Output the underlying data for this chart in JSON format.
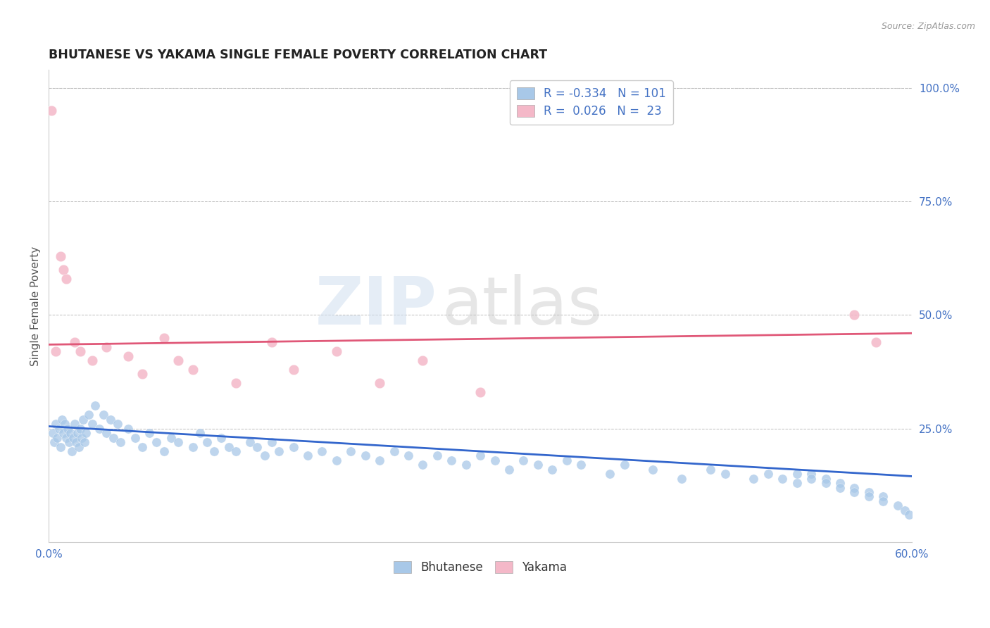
{
  "title": "BHUTANESE VS YAKAMA SINGLE FEMALE POVERTY CORRELATION CHART",
  "source": "Source: ZipAtlas.com",
  "ylabel": "Single Female Poverty",
  "xlim": [
    0.0,
    0.6
  ],
  "ylim": [
    0.0,
    1.04
  ],
  "xticks": [
    0.0,
    0.1,
    0.2,
    0.3,
    0.4,
    0.5,
    0.6
  ],
  "xticklabels": [
    "0.0%",
    "",
    "",
    "",
    "",
    "",
    "60.0%"
  ],
  "yticks_right": [
    0.0,
    0.25,
    0.5,
    0.75,
    1.0
  ],
  "ytickslabels_right": [
    "",
    "25.0%",
    "50.0%",
    "75.0%",
    "100.0%"
  ],
  "blue_R": "-0.334",
  "blue_N": "101",
  "pink_R": "0.026",
  "pink_N": "23",
  "blue_color": "#a8c8e8",
  "pink_color": "#f4b8c8",
  "blue_line_color": "#3366cc",
  "pink_line_color": "#e05878",
  "watermark_text": "ZIP",
  "watermark_text2": "atlas",
  "background_color": "#ffffff",
  "title_color": "#222222",
  "axis_label_color": "#555555",
  "tick_color": "#4472c4",
  "grid_color": "#bbbbbb",
  "blue_scatter_x": [
    0.003,
    0.004,
    0.005,
    0.006,
    0.007,
    0.008,
    0.009,
    0.01,
    0.011,
    0.012,
    0.013,
    0.014,
    0.015,
    0.016,
    0.017,
    0.018,
    0.019,
    0.02,
    0.021,
    0.022,
    0.023,
    0.024,
    0.025,
    0.026,
    0.028,
    0.03,
    0.032,
    0.035,
    0.038,
    0.04,
    0.043,
    0.045,
    0.048,
    0.05,
    0.055,
    0.06,
    0.065,
    0.07,
    0.075,
    0.08,
    0.085,
    0.09,
    0.1,
    0.105,
    0.11,
    0.115,
    0.12,
    0.125,
    0.13,
    0.14,
    0.145,
    0.15,
    0.155,
    0.16,
    0.17,
    0.18,
    0.19,
    0.2,
    0.21,
    0.22,
    0.23,
    0.24,
    0.25,
    0.26,
    0.27,
    0.28,
    0.29,
    0.3,
    0.31,
    0.32,
    0.33,
    0.34,
    0.35,
    0.36,
    0.37,
    0.39,
    0.4,
    0.42,
    0.44,
    0.46,
    0.47,
    0.49,
    0.5,
    0.51,
    0.52,
    0.53,
    0.54,
    0.55,
    0.56,
    0.57,
    0.58,
    0.52,
    0.53,
    0.54,
    0.55,
    0.56,
    0.57,
    0.58,
    0.59,
    0.595,
    0.598
  ],
  "blue_scatter_y": [
    0.24,
    0.22,
    0.26,
    0.23,
    0.25,
    0.21,
    0.27,
    0.24,
    0.26,
    0.23,
    0.25,
    0.22,
    0.24,
    0.2,
    0.23,
    0.26,
    0.22,
    0.24,
    0.21,
    0.25,
    0.23,
    0.27,
    0.22,
    0.24,
    0.28,
    0.26,
    0.3,
    0.25,
    0.28,
    0.24,
    0.27,
    0.23,
    0.26,
    0.22,
    0.25,
    0.23,
    0.21,
    0.24,
    0.22,
    0.2,
    0.23,
    0.22,
    0.21,
    0.24,
    0.22,
    0.2,
    0.23,
    0.21,
    0.2,
    0.22,
    0.21,
    0.19,
    0.22,
    0.2,
    0.21,
    0.19,
    0.2,
    0.18,
    0.2,
    0.19,
    0.18,
    0.2,
    0.19,
    0.17,
    0.19,
    0.18,
    0.17,
    0.19,
    0.18,
    0.16,
    0.18,
    0.17,
    0.16,
    0.18,
    0.17,
    0.15,
    0.17,
    0.16,
    0.14,
    0.16,
    0.15,
    0.14,
    0.15,
    0.14,
    0.13,
    0.15,
    0.14,
    0.13,
    0.12,
    0.11,
    0.1,
    0.15,
    0.14,
    0.13,
    0.12,
    0.11,
    0.1,
    0.09,
    0.08,
    0.07,
    0.06
  ],
  "pink_scatter_x": [
    0.002,
    0.008,
    0.01,
    0.012,
    0.018,
    0.022,
    0.03,
    0.04,
    0.055,
    0.065,
    0.08,
    0.09,
    0.1,
    0.13,
    0.155,
    0.17,
    0.2,
    0.23,
    0.26,
    0.3,
    0.56,
    0.575,
    0.005
  ],
  "pink_scatter_y": [
    0.95,
    0.63,
    0.6,
    0.58,
    0.44,
    0.42,
    0.4,
    0.43,
    0.41,
    0.37,
    0.45,
    0.4,
    0.38,
    0.35,
    0.44,
    0.38,
    0.42,
    0.35,
    0.4,
    0.33,
    0.5,
    0.44,
    0.42
  ],
  "blue_trend_x": [
    0.0,
    0.6
  ],
  "blue_trend_y": [
    0.255,
    0.145
  ],
  "pink_trend_x": [
    0.0,
    0.6
  ],
  "pink_trend_y": [
    0.435,
    0.46
  ]
}
